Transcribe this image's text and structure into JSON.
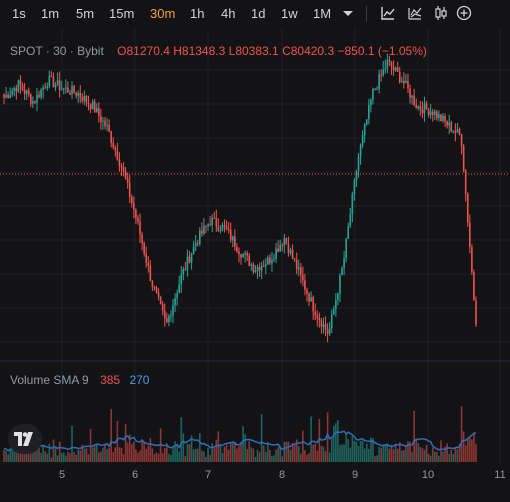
{
  "toolbar": {
    "timeframes": [
      "1s",
      "1m",
      "5m",
      "15m",
      "30m",
      "1h",
      "4h",
      "1d",
      "1w",
      "1M"
    ],
    "active": "30m",
    "icons": [
      "chevron-down-icon",
      "indicator-icon",
      "compare-icon",
      "candle-style-icon",
      "add-icon"
    ]
  },
  "legend": {
    "symbol": "SPOT · 30 · Bybit",
    "open_label": "O",
    "open": "81270.4",
    "high_label": "H",
    "high": "81348.3",
    "low_label": "L",
    "low": "80383.1",
    "close_label": "C",
    "close": "80420.3",
    "change": "−850.1 (−1.05%)"
  },
  "volume_legend": {
    "label": "Volume SMA 9",
    "value1": "385",
    "value2": "270"
  },
  "x_axis_labels": [
    "5",
    "6",
    "7",
    "8",
    "9",
    "10",
    "11"
  ],
  "colors": {
    "up": "#26a69a",
    "down": "#ef5350",
    "sma": "#2a6fb8",
    "bg": "#131316"
  },
  "chart_data": {
    "type": "candlestick",
    "interval": "30m",
    "x_ticks": [
      "5",
      "6",
      "7",
      "8",
      "9",
      "10",
      "11"
    ],
    "last_close": 80420.3,
    "price_path_approx": [
      85600,
      85900,
      85500,
      86000,
      85800,
      85700,
      85400,
      84900,
      84000,
      82800,
      81400,
      80400,
      81500,
      82300,
      82800,
      82600,
      82100,
      81700,
      81900,
      82400,
      81600,
      80800,
      80200,
      81800,
      84200,
      85700,
      86400,
      86000,
      85400,
      85300,
      85000,
      84700,
      80420.3
    ],
    "volume": {
      "sma_length": 9,
      "last_value": 385,
      "sma_value": 270
    }
  }
}
